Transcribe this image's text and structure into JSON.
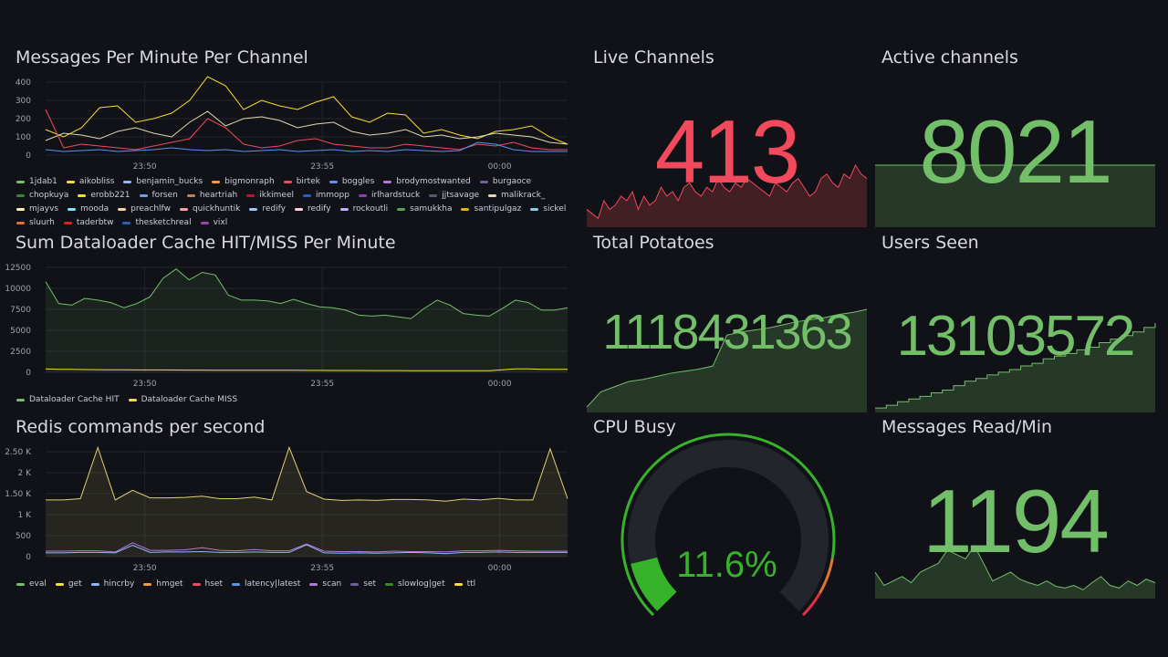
{
  "colors": {
    "bg": "#111217",
    "green": "#73bf69",
    "red": "#f2495c",
    "yellow": "#fade2a",
    "purple": "#8f3bb8"
  },
  "messages_panel": {
    "title": "Messages Per Minute Per Channel",
    "chart_data": {
      "type": "line",
      "yticks": [
        "400",
        "300",
        "200",
        "100",
        "0"
      ],
      "ylim": [
        0,
        450
      ],
      "xticks": [
        "23:50",
        "23:55",
        "00:00"
      ],
      "series": [
        {
          "name": "aikobliss",
          "color": "#fade2a",
          "values": [
            140,
            100,
            150,
            260,
            270,
            180,
            200,
            230,
            300,
            430,
            380,
            250,
            300,
            270,
            250,
            290,
            320,
            210,
            180,
            230,
            220,
            120,
            140,
            110,
            90,
            130,
            140,
            160,
            100,
            60
          ]
        },
        {
          "name": "malikrack_",
          "color": "#e0d9b0",
          "values": [
            80,
            120,
            110,
            90,
            130,
            150,
            120,
            100,
            180,
            240,
            160,
            200,
            210,
            190,
            150,
            170,
            180,
            130,
            110,
            120,
            140,
            100,
            110,
            90,
            100,
            120,
            110,
            100,
            70,
            60
          ]
        },
        {
          "name": "birtek",
          "color": "#f2495c",
          "values": [
            250,
            40,
            60,
            50,
            40,
            30,
            50,
            70,
            90,
            200,
            150,
            60,
            40,
            50,
            80,
            90,
            60,
            50,
            40,
            40,
            60,
            50,
            40,
            30,
            60,
            50,
            70,
            40,
            30,
            30
          ]
        },
        {
          "name": "forsen",
          "color": "#5794f2",
          "values": [
            30,
            20,
            25,
            30,
            20,
            25,
            30,
            40,
            30,
            25,
            30,
            20,
            25,
            30,
            20,
            25,
            30,
            20,
            25,
            20,
            30,
            25,
            20,
            25,
            70,
            60,
            30,
            20,
            20,
            20
          ]
        }
      ]
    },
    "legend": [
      "1jdab1",
      "aikobliss",
      "benjamin_bucks",
      "bigmonraph",
      "birtek",
      "boggles",
      "brodymostwanted",
      "burgaoce",
      "chopkuya",
      "erobb221",
      "forsen",
      "heartriah",
      "ikkimeel",
      "immopp",
      "irlhardstuck",
      "jjtsavage",
      "malikrack_",
      "mjayvs",
      "mooda",
      "preachlfw",
      "quickhuntik",
      "redify",
      "redify",
      "rockoutli",
      "samukkha",
      "santipulgaz",
      "sickel",
      "sluurh",
      "taderbtw",
      "thesketchreal",
      "vixl"
    ],
    "legend_colors": [
      "#73bf69",
      "#fade2a",
      "#8ab8ff",
      "#ff9830",
      "#f2495c",
      "#5794f2",
      "#b877d9",
      "#705da0",
      "#37872d",
      "#fade2a",
      "#6d9eeb",
      "#c4814a",
      "#c4162a",
      "#1f60c4",
      "#8f3bb8",
      "#585b6a",
      "#e0d9b0",
      "#fff3b0",
      "#8ae0ff",
      "#ffcfa0",
      "#ff9fae",
      "#9fc5ff",
      "#ffd0e0",
      "#c0b0ff",
      "#56a64b",
      "#e0b400",
      "#8ecde6",
      "#e07030",
      "#d0281e",
      "#3060b0",
      "#a040b0"
    ]
  },
  "cache_panel": {
    "title": "Sum Dataloader Cache HIT/MISS Per Minute",
    "chart_data": {
      "type": "line",
      "yticks": [
        "12500",
        "10000",
        "7500",
        "5000",
        "2500",
        "0"
      ],
      "ylim": [
        0,
        13000
      ],
      "xticks": [
        "23:50",
        "23:55",
        "00:00"
      ],
      "series": [
        {
          "name": "Dataloader Cache HIT",
          "color": "#73bf69",
          "values": [
            10800,
            8200,
            8000,
            8800,
            8600,
            8300,
            7700,
            8200,
            9000,
            11200,
            12300,
            11000,
            11900,
            11600,
            9200,
            8600,
            8600,
            8500,
            8200,
            8700,
            8200,
            7800,
            7700,
            7400,
            6800,
            6700,
            6800,
            6600,
            6400,
            7600,
            8600,
            8000,
            7000,
            6800,
            6700,
            7600,
            8600,
            8300,
            7400,
            7400,
            7700
          ]
        },
        {
          "name": "Dataloader Cache MISS",
          "color": "#fade2a",
          "values": [
            400,
            350,
            350,
            330,
            320,
            300,
            300,
            280,
            280,
            280,
            270,
            260,
            260,
            250,
            250,
            250,
            240,
            240,
            240,
            240,
            230,
            230,
            220,
            220,
            220,
            210,
            210,
            210,
            200,
            200,
            200,
            200,
            200,
            200,
            200,
            300,
            400,
            400,
            350,
            350,
            350
          ]
        }
      ]
    }
  },
  "redis_panel": {
    "title": "Redis commands per second",
    "chart_data": {
      "type": "line",
      "yticks": [
        "2.50 K",
        "2 K",
        "1.50 K",
        "1 K",
        "500",
        "0"
      ],
      "ylim": [
        0,
        2700
      ],
      "xticks": [
        "23:50",
        "23:55",
        "00:00"
      ],
      "series": [
        {
          "name": "get",
          "color": "#e0d070",
          "values": [
            1350,
            1350,
            1380,
            2600,
            1350,
            1580,
            1400,
            1400,
            1410,
            1440,
            1380,
            1380,
            1420,
            1350,
            2600,
            1550,
            1370,
            1340,
            1350,
            1340,
            1360,
            1360,
            1350,
            1320,
            1370,
            1350,
            1390,
            1350,
            1350,
            2570,
            1380
          ]
        },
        {
          "name": "scan",
          "color": "#b877d9",
          "values": [
            130,
            130,
            140,
            140,
            110,
            330,
            150,
            150,
            160,
            210,
            150,
            140,
            170,
            140,
            140,
            300,
            130,
            120,
            120,
            110,
            130,
            120,
            120,
            110,
            140,
            140,
            150,
            140,
            130,
            130,
            130
          ]
        },
        {
          "name": "hincrby",
          "color": "#8ab8ff",
          "values": [
            90,
            90,
            100,
            100,
            90,
            270,
            100,
            110,
            110,
            120,
            100,
            100,
            110,
            100,
            100,
            280,
            90,
            80,
            90,
            80,
            90,
            100,
            90,
            70,
            100,
            100,
            110,
            100,
            100,
            100,
            100
          ]
        }
      ]
    },
    "legend": [
      "eval",
      "get",
      "hincrby",
      "hmget",
      "hset",
      "latency|latest",
      "scan",
      "set",
      "slowlog|get",
      "ttl"
    ],
    "legend_colors": [
      "#73bf69",
      "#fade2a",
      "#8ab8ff",
      "#ff9830",
      "#f2495c",
      "#5794f2",
      "#b877d9",
      "#705da0",
      "#37872d",
      "#fade2a"
    ]
  },
  "live_channels": {
    "title": "Live Channels",
    "value": "413",
    "color": "#f2495c",
    "spark": [
      20,
      15,
      10,
      30,
      20,
      25,
      35,
      30,
      40,
      20,
      35,
      25,
      30,
      45,
      35,
      40,
      30,
      45,
      50,
      40,
      35,
      45,
      40,
      55,
      45,
      40,
      50,
      45,
      55,
      50,
      45,
      40,
      35,
      50,
      45,
      40,
      50,
      55,
      45,
      35,
      40,
      55,
      60,
      50,
      45,
      60,
      55,
      70,
      60,
      55
    ]
  },
  "active_channels": {
    "title": "Active channels",
    "value": "8021",
    "spark": [
      50,
      50,
      50,
      50,
      50,
      50,
      50,
      50,
      50,
      50
    ]
  },
  "total_potatoes": {
    "title": "Total Potatoes",
    "value": "1118431363",
    "spark": [
      5,
      20,
      25,
      30,
      32,
      35,
      38,
      40,
      42,
      45,
      75,
      78,
      80,
      82,
      85,
      88,
      90,
      92,
      95,
      97,
      100
    ]
  },
  "users_seen": {
    "title": "Users Seen",
    "value": "13103572",
    "spark": [
      5,
      8,
      12,
      15,
      18,
      22,
      25,
      30,
      35,
      38,
      42,
      45,
      48,
      52,
      55,
      60,
      63,
      66,
      70,
      73,
      78,
      82,
      86,
      90,
      95,
      100
    ]
  },
  "cpu_busy": {
    "title": "CPU Busy",
    "value": "11.6%",
    "percent": 11.6
  },
  "messages_read": {
    "title": "Messages Read/Min",
    "value": "1194",
    "spark": [
      30,
      15,
      20,
      25,
      18,
      30,
      35,
      40,
      55,
      50,
      45,
      60,
      40,
      20,
      25,
      30,
      22,
      18,
      15,
      20,
      14,
      12,
      15,
      10,
      18,
      25,
      15,
      12,
      20,
      15,
      22,
      18
    ]
  }
}
